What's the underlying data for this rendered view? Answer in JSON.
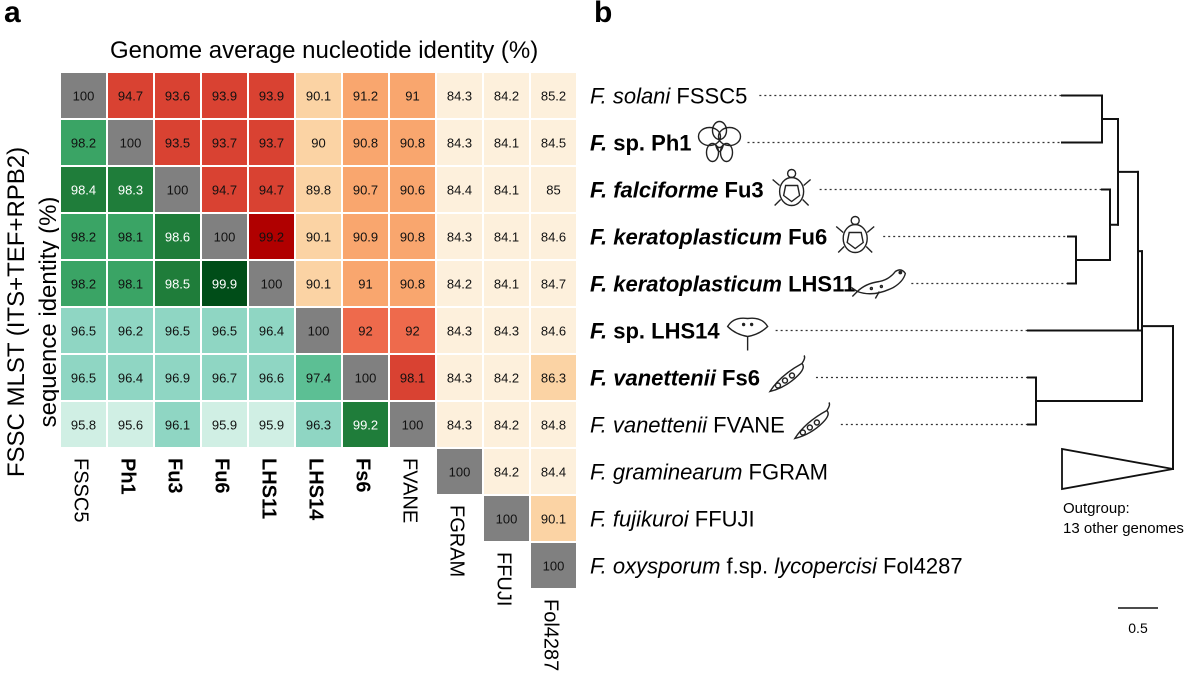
{
  "panel_a_label": "a",
  "panel_b_label": "b",
  "chart_data": [
    {
      "type": "heatmap",
      "title": "Genome average nucleotide identity (%)",
      "ylabel_line1": "FSSC MLST (ITS+TEF+RPB2)",
      "ylabel_line2": "sequence identity (%)",
      "columns": [
        "FSSC5",
        "Ph1",
        "Fu3",
        "Fu6",
        "LHS11",
        "LHS14",
        "Fs6",
        "FVANE",
        "FGRAM",
        "FFUJI",
        "Fol4287"
      ],
      "bold_columns": [
        "Ph1",
        "Fu3",
        "Fu6",
        "LHS11",
        "LHS14",
        "Fs6"
      ],
      "rows": [
        [
          "100",
          "94.7",
          "93.6",
          "93.9",
          "93.9",
          "90.1",
          "91.2",
          "91",
          "84.3",
          "84.2",
          "85.2"
        ],
        [
          "98.2",
          "100",
          "93.5",
          "93.7",
          "93.7",
          "90",
          "90.8",
          "90.8",
          "84.3",
          "84.1",
          "84.5"
        ],
        [
          "98.4",
          "98.3",
          "100",
          "94.7",
          "94.7",
          "89.8",
          "90.7",
          "90.6",
          "84.4",
          "84.1",
          "85"
        ],
        [
          "98.2",
          "98.1",
          "98.6",
          "100",
          "99.2",
          "90.1",
          "90.9",
          "90.8",
          "84.3",
          "84.1",
          "84.6"
        ],
        [
          "98.2",
          "98.1",
          "98.5",
          "99.9",
          "100",
          "90.1",
          "91",
          "90.8",
          "84.2",
          "84.1",
          "84.7"
        ],
        [
          "96.5",
          "96.2",
          "96.5",
          "96.5",
          "96.4",
          "100",
          "92",
          "92",
          "84.3",
          "84.3",
          "84.6"
        ],
        [
          "96.5",
          "96.4",
          "96.9",
          "96.7",
          "96.6",
          "97.4",
          "100",
          "98.1",
          "84.3",
          "84.2",
          "86.3"
        ],
        [
          "95.8",
          "95.6",
          "96.1",
          "95.9",
          "95.9",
          "96.3",
          "99.2",
          "100",
          "84.3",
          "84.2",
          "84.8"
        ],
        [
          null,
          null,
          null,
          null,
          null,
          null,
          null,
          null,
          "100",
          "84.2",
          "84.4"
        ],
        [
          null,
          null,
          null,
          null,
          null,
          null,
          null,
          null,
          null,
          "100",
          "90.1"
        ],
        [
          null,
          null,
          null,
          null,
          null,
          null,
          null,
          null,
          null,
          null,
          "100"
        ]
      ],
      "diagonal_color": "#808080",
      "ani_scale_colors": [
        "#fdf0dc",
        "#fbd3a4",
        "#f9a66e",
        "#ee6a4c",
        "#d94232",
        "#b00000"
      ],
      "mlst_scale_colors": [
        "#d0efe4",
        "#8fd6c3",
        "#5cbf94",
        "#3aa465",
        "#1f7d3a",
        "#004d18"
      ]
    },
    {
      "type": "phylogenetic_tree",
      "tips": [
        {
          "genus": "F.",
          "epithet": "solani",
          "strain": "FSSC5",
          "bold": false,
          "italic_extra": "",
          "suffix": "",
          "icon": ""
        },
        {
          "genus": "F.",
          "epithet": "sp.",
          "strain": "Ph1",
          "bold": true,
          "epithet_italic": false,
          "icon": "orchid-icon"
        },
        {
          "genus": "F.",
          "epithet": "falciforme",
          "strain": "Fu3",
          "bold": true,
          "icon": "turtle-icon"
        },
        {
          "genus": "F.",
          "epithet": "keratoplasticum",
          "strain": "Fu6",
          "bold": true,
          "icon": "turtle-icon"
        },
        {
          "genus": "F.",
          "epithet": "keratoplasticum",
          "strain": "LHS11",
          "bold": true,
          "icon": "seal-icon"
        },
        {
          "genus": "F.",
          "epithet": "sp.",
          "strain": "LHS14",
          "bold": true,
          "epithet_italic": false,
          "icon": "stingray-icon"
        },
        {
          "genus": "F.",
          "epithet": "vanettenii",
          "strain": "Fs6",
          "bold": true,
          "icon": "peapod-icon"
        },
        {
          "genus": "F.",
          "epithet": "vanettenii",
          "strain": "FVANE",
          "bold": false,
          "icon": "peapod-icon"
        },
        {
          "genus": "F.",
          "epithet": "graminearum",
          "strain": "FGRAM",
          "bold": false,
          "icon": ""
        },
        {
          "genus": "F.",
          "epithet": "fujikuroi",
          "strain": "FFUJI",
          "bold": false,
          "icon": ""
        },
        {
          "genus": "F.",
          "epithet": "oxysporum",
          "strain": "Fol4287",
          "bold": false,
          "icon": "",
          "mid_plain": "f.sp.",
          "mid_italic": "lycopercisi"
        }
      ],
      "outgroup_label_line1": "Outgroup:",
      "outgroup_label_line2": "13 other genomes",
      "scale_bar_label": "0.5",
      "scale_bar_value": 0.5
    }
  ]
}
